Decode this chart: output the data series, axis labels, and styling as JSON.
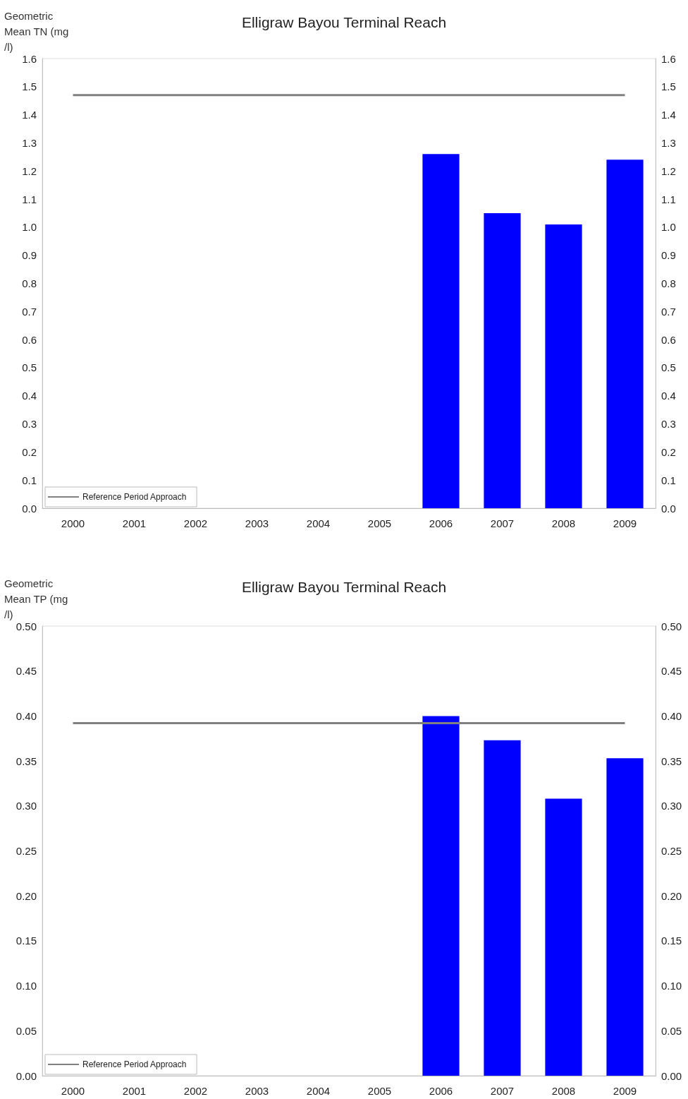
{
  "chart_data": [
    {
      "type": "bar",
      "title": "Elligraw Bayou Terminal Reach",
      "ylabel": "Geometric Mean TN (mg/l)",
      "categories": [
        "2000",
        "2001",
        "2002",
        "2003",
        "2004",
        "2005",
        "2006",
        "2007",
        "2008",
        "2009"
      ],
      "series": [
        {
          "color": "#0000ff",
          "values": [
            null,
            null,
            null,
            null,
            null,
            null,
            1.26,
            1.05,
            1.01,
            1.24
          ]
        },
        {
          "type": "line",
          "name": "Reference Period Approach",
          "color": "#808080",
          "values": [
            1.47,
            1.47,
            1.47,
            1.47,
            1.47,
            1.47,
            1.47,
            1.47,
            1.47,
            1.47
          ]
        }
      ],
      "ylim": [
        0,
        1.6
      ],
      "yticks": [
        {
          "value": 0,
          "label": "0.0"
        },
        0.1,
        0.2,
        0.3,
        0.4,
        0.5,
        0.6,
        0.7,
        0.8,
        0.9,
        {
          "value": 1,
          "label": "1.0"
        },
        1.1,
        1.2,
        1.3,
        1.4,
        1.5,
        1.6
      ],
      "y2lim": [
        0,
        1.6
      ],
      "y2ticks": [
        {
          "value": 0,
          "label": "0.0"
        },
        0.1,
        0.2,
        0.3,
        0.4,
        0.5,
        0.6,
        0.7,
        0.8,
        0.9,
        {
          "value": 1,
          "label": "1.0"
        },
        1.1,
        1.2,
        1.3,
        1.4,
        1.5,
        1.6
      ],
      "legend": "bottom left",
      "marker": "none",
      "line_style": "solid"
    },
    {
      "type": "bar",
      "title": "Elligraw Bayou Terminal Reach",
      "ylabel": "Geometric Mean TP (mg/l)",
      "categories": [
        "2000",
        "2001",
        "2002",
        "2003",
        "2004",
        "2005",
        "2006",
        "2007",
        "2008",
        "2009"
      ],
      "series": [
        {
          "color": "#0000ff",
          "values": [
            null,
            null,
            null,
            null,
            null,
            null,
            0.4,
            0.373,
            0.308,
            0.353
          ]
        },
        {
          "type": "line",
          "name": "Reference Period Approach",
          "color": "#808080",
          "values": [
            0.392,
            0.392,
            0.392,
            0.392,
            0.392,
            0.392,
            0.392,
            0.392,
            0.392,
            0.392
          ]
        }
      ],
      "ylim": [
        0,
        0.5
      ],
      "yticks": [
        {
          "value": 0,
          "label": "0.00"
        },
        0.05,
        {
          "value": 0.1,
          "label": "0.10"
        },
        0.15,
        {
          "value": 0.2,
          "label": "0.20"
        },
        0.25,
        {
          "value": 0.3,
          "label": "0.30"
        },
        0.35,
        {
          "value": 0.4,
          "label": "0.40"
        },
        0.45,
        {
          "value": 0.5,
          "label": "0.50"
        }
      ],
      "y2lim": [
        0,
        0.5
      ],
      "y2ticks": [
        {
          "value": 0,
          "label": "0.00"
        },
        0.05,
        {
          "value": 0.1,
          "label": "0.10"
        },
        0.15,
        {
          "value": 0.2,
          "label": "0.20"
        },
        0.25,
        {
          "value": 0.3,
          "label": "0.30"
        },
        0.35,
        {
          "value": 0.4,
          "label": "0.40"
        },
        0.45,
        {
          "value": 0.5,
          "label": "0.50"
        }
      ],
      "legend": "bottom left",
      "marker": "none",
      "line_style": "solid"
    }
  ]
}
